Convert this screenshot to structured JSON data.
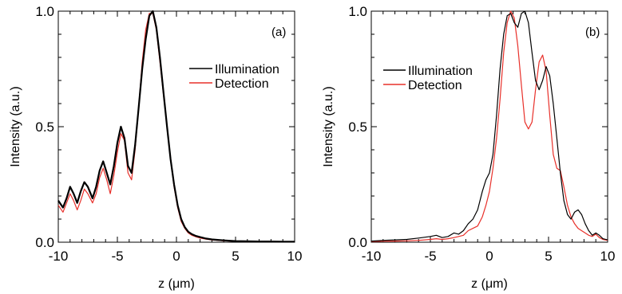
{
  "chart_data": [
    {
      "type": "line",
      "panel_label": "(a)",
      "xlabel": "z (μm)",
      "ylabel": "Intensity (a.u.)",
      "xlim": [
        -10,
        10
      ],
      "ylim": [
        0,
        1
      ],
      "xticks": [
        -10,
        -5,
        0,
        5,
        10
      ],
      "yticks": [
        0.0,
        0.5,
        1.0
      ],
      "xtick_labels": [
        "-10",
        "-5",
        "0",
        "5",
        "10"
      ],
      "ytick_labels": [
        "0.0",
        "0.5",
        "1.0"
      ],
      "legend_position": "right",
      "series": [
        {
          "name": "Illumination",
          "color": "#000000",
          "x": [
            -10,
            -9.6,
            -9.3,
            -9.0,
            -8.7,
            -8.4,
            -8.1,
            -7.8,
            -7.5,
            -7.1,
            -6.8,
            -6.5,
            -6.2,
            -5.9,
            -5.6,
            -5.3,
            -5.0,
            -4.7,
            -4.4,
            -4.1,
            -3.8,
            -3.5,
            -3.2,
            -2.9,
            -2.6,
            -2.3,
            -2.0,
            -1.7,
            -1.4,
            -1.1,
            -0.8,
            -0.5,
            -0.2,
            0.1,
            0.4,
            0.7,
            1.0,
            1.3,
            1.6,
            2.0,
            2.5,
            3.0,
            3.5,
            4.0,
            5.0,
            6.0,
            7.0,
            8.0,
            9.0,
            10.0
          ],
          "y": [
            0.18,
            0.15,
            0.19,
            0.24,
            0.21,
            0.17,
            0.22,
            0.26,
            0.24,
            0.19,
            0.24,
            0.31,
            0.35,
            0.3,
            0.25,
            0.33,
            0.43,
            0.5,
            0.45,
            0.33,
            0.3,
            0.42,
            0.58,
            0.75,
            0.88,
            0.98,
            1.0,
            0.93,
            0.8,
            0.65,
            0.5,
            0.36,
            0.25,
            0.16,
            0.1,
            0.065,
            0.045,
            0.035,
            0.028,
            0.022,
            0.016,
            0.012,
            0.01,
            0.008,
            0.005,
            0.004,
            0.003,
            0.003,
            0.002,
            0.002
          ]
        },
        {
          "name": "Detection",
          "color": "#e8302a",
          "x": [
            -10,
            -9.6,
            -9.3,
            -9.0,
            -8.7,
            -8.4,
            -8.1,
            -7.8,
            -7.5,
            -7.1,
            -6.8,
            -6.5,
            -6.2,
            -5.9,
            -5.6,
            -5.3,
            -5.0,
            -4.7,
            -4.4,
            -4.1,
            -3.8,
            -3.5,
            -3.2,
            -2.9,
            -2.6,
            -2.3,
            -2.0,
            -1.7,
            -1.4,
            -1.1,
            -0.8,
            -0.5,
            -0.2,
            0.1,
            0.4,
            0.7,
            1.0,
            1.3,
            1.6,
            2.0,
            2.5,
            3.0,
            3.5,
            4.0,
            5.0,
            6.0,
            7.0,
            8.0,
            9.0,
            10.0
          ],
          "y": [
            0.16,
            0.13,
            0.17,
            0.21,
            0.18,
            0.14,
            0.18,
            0.23,
            0.21,
            0.17,
            0.21,
            0.28,
            0.32,
            0.27,
            0.21,
            0.29,
            0.39,
            0.47,
            0.44,
            0.3,
            0.27,
            0.4,
            0.58,
            0.78,
            0.92,
            0.99,
            0.99,
            0.92,
            0.78,
            0.64,
            0.5,
            0.36,
            0.24,
            0.15,
            0.09,
            0.06,
            0.04,
            0.03,
            0.024,
            0.018,
            0.013,
            0.01,
            0.008,
            0.006,
            0.004,
            0.003,
            0.003,
            0.002,
            0.002,
            0.002
          ]
        }
      ]
    },
    {
      "type": "line",
      "panel_label": "(b)",
      "xlabel": "z (μm)",
      "ylabel": "Intensity (a.u.)",
      "xlim": [
        -10,
        10
      ],
      "ylim": [
        0,
        1
      ],
      "xticks": [
        -10,
        -5,
        0,
        5,
        10
      ],
      "yticks": [
        0.0,
        0.5,
        1.0
      ],
      "xtick_labels": [
        "-10",
        "-5",
        "0",
        "5",
        "10"
      ],
      "ytick_labels": [
        "0.0",
        "0.5",
        "1.0"
      ],
      "legend_position": "top-left",
      "series": [
        {
          "name": "Illumination",
          "color": "#000000",
          "x": [
            -10,
            -9,
            -8,
            -7,
            -6,
            -5,
            -4.5,
            -4,
            -3.5,
            -3,
            -2.6,
            -2.2,
            -1.8,
            -1.4,
            -1.0,
            -0.6,
            -0.3,
            0.0,
            0.3,
            0.6,
            0.9,
            1.2,
            1.5,
            1.8,
            2.1,
            2.4,
            2.7,
            3.0,
            3.3,
            3.6,
            3.9,
            4.2,
            4.5,
            4.8,
            5.1,
            5.4,
            5.7,
            6.0,
            6.3,
            6.6,
            6.9,
            7.2,
            7.5,
            7.8,
            8.1,
            8.4,
            8.7,
            9.0,
            9.3,
            9.6,
            10.0
          ],
          "y": [
            0.005,
            0.008,
            0.01,
            0.012,
            0.018,
            0.025,
            0.03,
            0.02,
            0.025,
            0.04,
            0.035,
            0.05,
            0.08,
            0.1,
            0.14,
            0.22,
            0.27,
            0.3,
            0.38,
            0.55,
            0.75,
            0.9,
            0.98,
            0.99,
            0.95,
            0.93,
            0.99,
            1.0,
            0.95,
            0.82,
            0.7,
            0.66,
            0.7,
            0.76,
            0.72,
            0.6,
            0.45,
            0.3,
            0.18,
            0.12,
            0.1,
            0.13,
            0.14,
            0.12,
            0.08,
            0.05,
            0.03,
            0.04,
            0.03,
            0.015,
            0.01
          ]
        },
        {
          "name": "Detection",
          "color": "#e8302a",
          "x": [
            -10,
            -9,
            -8,
            -7,
            -6,
            -5,
            -4.5,
            -4,
            -3.5,
            -3,
            -2.6,
            -2.2,
            -1.8,
            -1.4,
            -1.0,
            -0.6,
            -0.3,
            0.0,
            0.3,
            0.6,
            0.9,
            1.2,
            1.5,
            1.8,
            2.1,
            2.4,
            2.7,
            3.0,
            3.3,
            3.6,
            3.9,
            4.2,
            4.5,
            4.8,
            5.1,
            5.4,
            5.7,
            6.0,
            6.3,
            6.6,
            6.9,
            7.2,
            7.5,
            7.8,
            8.1,
            8.4,
            8.7,
            9.0,
            9.3,
            9.6,
            10.0
          ],
          "y": [
            0.003,
            0.004,
            0.005,
            0.006,
            0.008,
            0.012,
            0.015,
            0.012,
            0.015,
            0.02,
            0.025,
            0.03,
            0.05,
            0.06,
            0.07,
            0.11,
            0.16,
            0.22,
            0.32,
            0.45,
            0.62,
            0.82,
            0.95,
            1.0,
            0.97,
            0.85,
            0.68,
            0.52,
            0.49,
            0.52,
            0.66,
            0.78,
            0.81,
            0.74,
            0.55,
            0.38,
            0.32,
            0.31,
            0.24,
            0.16,
            0.11,
            0.08,
            0.06,
            0.05,
            0.04,
            0.03,
            0.025,
            0.035,
            0.02,
            0.012,
            0.008
          ]
        }
      ]
    }
  ]
}
